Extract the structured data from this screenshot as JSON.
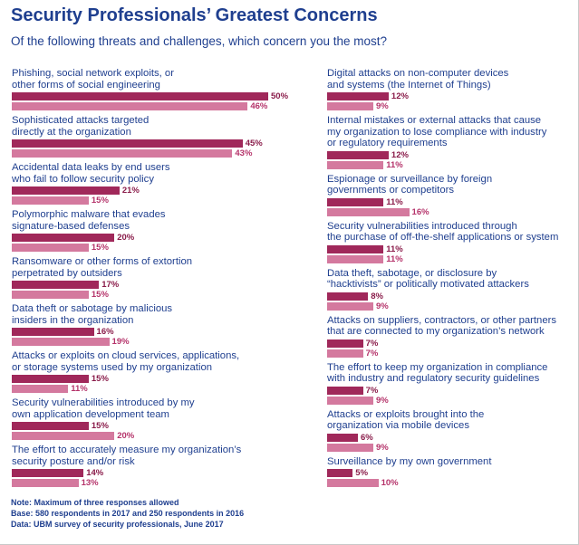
{
  "title": "Security Professionals’ Greatest Concerns",
  "subtitle": "Of the following threats and challenges, which concern you the most?",
  "notes": [
    "Note: Maximum of three responses allowed",
    "Base: 580 respondents in 2017 and 250 respondents in 2016",
    "Data: UBM survey of security professionals, June 2017"
  ],
  "colors": {
    "series_2017": "#a0285a",
    "series_2016": "#d4799e",
    "text": "#1f3f8f"
  },
  "chart_data": {
    "type": "bar",
    "orientation": "horizontal",
    "unit": "%",
    "series": [
      {
        "values": [
          50,
          45,
          21,
          20,
          17,
          16,
          15,
          15,
          14,
          12,
          12,
          11,
          11,
          8,
          7,
          7,
          6,
          5
        ]
      },
      {
        "values": [
          46,
          43,
          15,
          15,
          15,
          19,
          11,
          20,
          13,
          9,
          11,
          16,
          11,
          9,
          7,
          9,
          9,
          10
        ]
      }
    ],
    "categories": [
      "Phishing, social network exploits, or\nother forms of social engineering",
      "Sophisticated attacks targeted\ndirectly at the organization",
      "Accidental data leaks by end users\nwho fail to follow security policy",
      "Polymorphic malware that evades\nsignature-based defenses",
      "Ransomware or other forms of extortion\nperpetrated by outsiders",
      "Data theft or sabotage by malicious\ninsiders in the organization",
      "Attacks or exploits on cloud services, applications,\nor storage systems used by my organization",
      "Security vulnerabilities introduced by my\nown application development team",
      "The effort to accurately measure my organization’s\nsecurity posture and/or risk",
      "Digital attacks on non-computer devices\nand systems (the Internet of Things)",
      "Internal mistakes or external attacks that cause\nmy organization to lose compliance with industry\nor regulatory requirements",
      "Espionage or surveillance by foreign\ngovernments or competitors",
      "Security vulnerabilities introduced through\nthe purchase of off-the-shelf applications or system",
      "Data theft, sabotage, or disclosure by\n“hacktivists” or politically motivated attackers",
      "Attacks on suppliers, contractors, or other partners\nthat are connected to my organization’s network",
      "The effort to keep my organization in compliance\nwith industry and regulatory security guidelines",
      "Attacks or exploits brought into the\norganization via mobile devices",
      "Surveillance by my own government"
    ]
  }
}
